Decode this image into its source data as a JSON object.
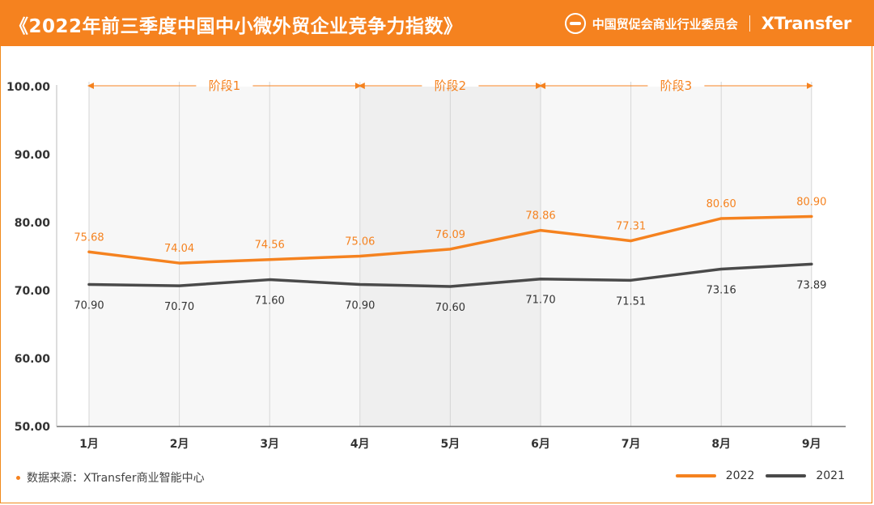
{
  "header": {
    "title": "《2022年前三季度中国中小微外贸企业竞争力指数》",
    "organization": "中国贸促会商业行业委员会",
    "brand": "XTransfer",
    "logo_icon": "ccpit-logo-icon"
  },
  "footer": {
    "source_label": "数据来源：XTransfer商业智能中心"
  },
  "colors": {
    "accent": "#f5821f",
    "series_2022": "#f5821f",
    "series_2021": "#4a4a4a"
  },
  "chart_data": {
    "type": "line",
    "title": "2022年前三季度中国中小微外贸企业竞争力指数",
    "categories": [
      "1月",
      "2月",
      "3月",
      "4月",
      "5月",
      "6月",
      "7月",
      "8月",
      "9月"
    ],
    "series": [
      {
        "name": "2022",
        "values": [
          75.68,
          74.04,
          74.56,
          75.06,
          76.09,
          78.86,
          77.31,
          80.6,
          80.9
        ],
        "labels": [
          "75.68",
          "74.04",
          "74.56",
          "75.06",
          "76.09",
          "78.86",
          "77.31",
          "80.60",
          "80.90"
        ]
      },
      {
        "name": "2021",
        "values": [
          70.9,
          70.7,
          71.6,
          70.9,
          70.6,
          71.7,
          71.51,
          73.16,
          73.89
        ],
        "labels": [
          "70.90",
          "70.70",
          "71.60",
          "70.90",
          "70.60",
          "71.70",
          "71.51",
          "73.16",
          "73.89"
        ]
      }
    ],
    "ylim": [
      50,
      100
    ],
    "yticks": [
      50,
      60,
      70,
      80,
      90,
      100
    ],
    "ytick_labels": [
      "50.00",
      "60.00",
      "70.00",
      "80.00",
      "90.00",
      "100.00"
    ],
    "phases": [
      {
        "label": "阶段1",
        "start": 0,
        "end": 3
      },
      {
        "label": "阶段2",
        "start": 3,
        "end": 5
      },
      {
        "label": "阶段3",
        "start": 5,
        "end": 8
      }
    ],
    "xlabel": "",
    "ylabel": "",
    "legend": "bottom-right",
    "grid": "vertical"
  }
}
